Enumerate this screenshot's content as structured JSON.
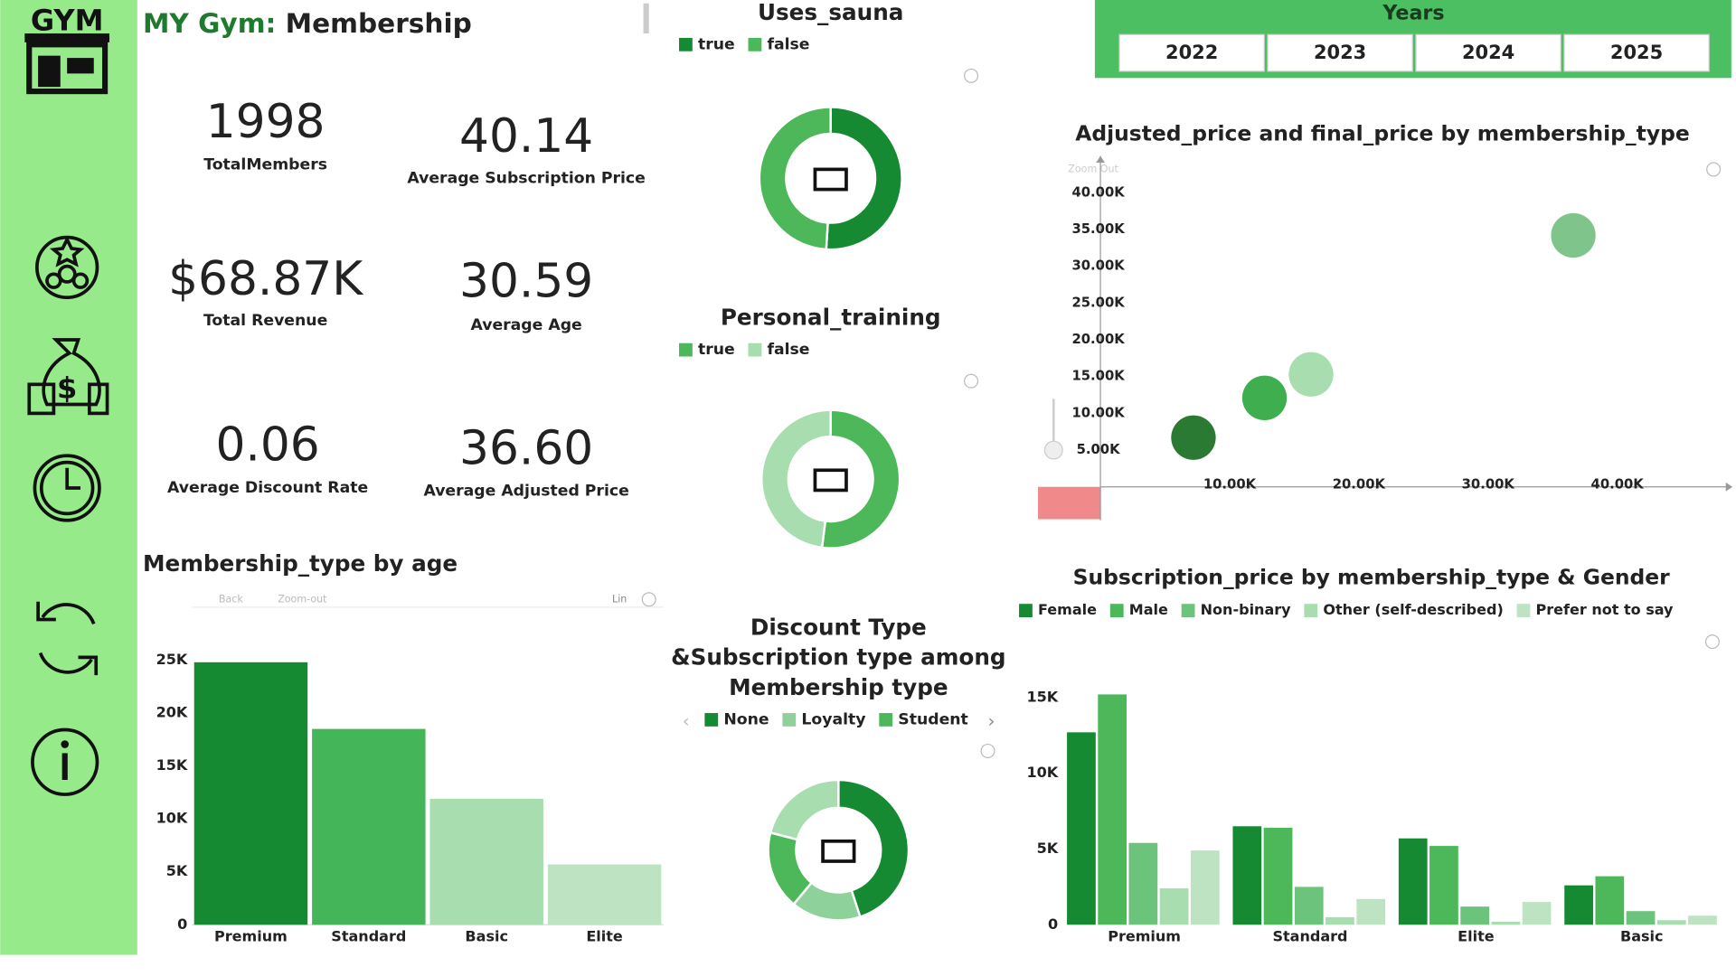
{
  "header": {
    "logo": "GYM",
    "title_prefix": "MY Gym:",
    "title": "Membership"
  },
  "kpis": [
    {
      "value": "1998",
      "label": "TotalMembers"
    },
    {
      "value": "40.14",
      "label": "Average Subscription Price"
    },
    {
      "value": "$68.87K",
      "label": "Total Revenue"
    },
    {
      "value": "30.59",
      "label": "Average Age"
    },
    {
      "value": "0.06",
      "label": "Average Discount Rate"
    },
    {
      "value": "36.60",
      "label": "Average Adjusted Price"
    }
  ],
  "slicer": {
    "title": "Years",
    "options": [
      "2022",
      "2023",
      "2024",
      "2025"
    ]
  },
  "toolbars": {
    "scatter_zoom": "Zoom Out",
    "bar_back": "Back",
    "bar_zoom": "Zoom-out",
    "bar_scale": "Lin"
  },
  "chart_data": [
    {
      "type": "pie",
      "title": [
        "Uses_sauna"
      ],
      "categories": [
        "true",
        "false"
      ],
      "values": [
        51,
        49
      ],
      "colors": [
        "#168a32",
        "#4cb85a"
      ]
    },
    {
      "type": "pie",
      "title": [
        "Personal_training"
      ],
      "categories": [
        "true",
        "false"
      ],
      "values": [
        52,
        48
      ],
      "colors": [
        "#4cb85a",
        "#a8ddb0"
      ]
    },
    {
      "type": "pie",
      "title": [
        "Discount Type",
        "&Subscription type among",
        "Membership type"
      ],
      "categories": [
        "None",
        "Loyalty",
        "Student",
        null
      ],
      "values": [
        45,
        16,
        18,
        21
      ],
      "colors": [
        "#168a32",
        "#8fd19a",
        "#4cb85a",
        "#a8ddb0"
      ]
    },
    {
      "type": "scatter",
      "title": "Adjusted_price and final_price by membership_type",
      "x": [
        7200,
        12700,
        16300,
        36600
      ],
      "values": [
        6700,
        12100,
        15300,
        34200
      ],
      "colors": [
        "#2b7a33",
        "#3fae4f",
        "#a8ddb0",
        "#7fc48a"
      ],
      "xlim": [
        0,
        48400
      ],
      "ylim": [
        0,
        45000
      ],
      "xticks": [
        {
          "value": 10000,
          "label": "10.00K"
        },
        {
          "value": 20000,
          "label": "20.00K"
        },
        {
          "value": 30000,
          "label": "30.00K"
        },
        {
          "value": 40000,
          "label": "40.00K"
        }
      ],
      "yticks": [
        {
          "value": 5000,
          "label": "5.00K"
        },
        {
          "value": 10000,
          "label": "10.00K"
        },
        {
          "value": 15000,
          "label": "15.00K"
        },
        {
          "value": 20000,
          "label": "20.00K"
        },
        {
          "value": 25000,
          "label": "25.00K"
        },
        {
          "value": 30000,
          "label": "30.00K"
        },
        {
          "value": 35000,
          "label": "35.00K"
        },
        {
          "value": 40000,
          "label": "40.00K"
        }
      ]
    },
    {
      "type": "bar",
      "title": "Membership_type by age",
      "categories": [
        "Premium",
        "Standard",
        "Basic",
        "Elite"
      ],
      "values": [
        24800,
        18500,
        11900,
        5700
      ],
      "colors": [
        "#168a32",
        "#45b55a",
        "#a8ddb0",
        "#bde3c3"
      ],
      "ylim": [
        0,
        25000
      ],
      "yticks": [
        0,
        {
          "value": 5000,
          "label": "5K"
        },
        {
          "value": 10000,
          "label": "10K"
        },
        {
          "value": 15000,
          "label": "15K"
        },
        {
          "value": 20000,
          "label": "20K"
        },
        {
          "value": 25000,
          "label": "25K"
        }
      ]
    },
    {
      "type": "grouped_bar",
      "title": "Subscription_price by membership_type & Gender",
      "categories": [
        "Premium",
        "Standard",
        "Elite",
        "Basic"
      ],
      "series": [
        {
          "name": "Female",
          "color": "#168a32",
          "values": [
            12700,
            6500,
            5700,
            2600
          ]
        },
        {
          "name": "Male",
          "color": "#4cb85a",
          "values": [
            15200,
            6400,
            5200,
            3200
          ]
        },
        {
          "name": "Non-binary",
          "color": "#6cc47c",
          "values": [
            5400,
            2500,
            1200,
            900
          ]
        },
        {
          "name": "Other (self-described)",
          "color": "#a8ddb0",
          "values": [
            2400,
            500,
            200,
            300
          ]
        },
        {
          "name": "Prefer not to say",
          "color": "#bde3c3",
          "values": [
            4900,
            1700,
            1500,
            600
          ]
        }
      ],
      "ylim": [
        0,
        17000
      ],
      "yticks": [
        0,
        {
          "value": 5000,
          "label": "5K"
        },
        {
          "value": 10000,
          "label": "10K"
        },
        {
          "value": 15000,
          "label": "15K"
        }
      ]
    }
  ]
}
